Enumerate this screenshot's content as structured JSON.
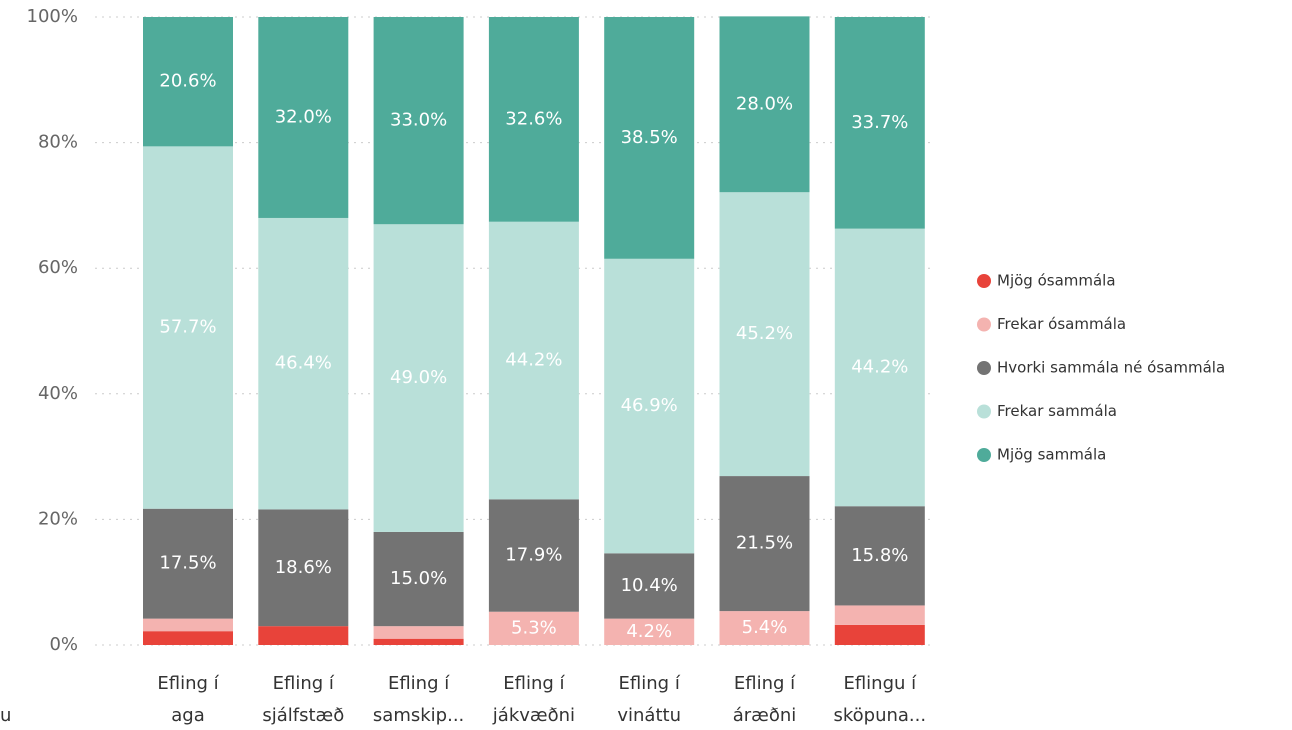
{
  "chart_data": {
    "type": "stacked_bar_100",
    "axis_title": "u",
    "categories": [
      [
        "Efling í",
        "aga"
      ],
      [
        "Efling í",
        "sjálfstæð"
      ],
      [
        "Efling í",
        "samskip..."
      ],
      [
        "Efling í",
        "jákvæðni"
      ],
      [
        "Efling í",
        "vináttu"
      ],
      [
        "Efling í",
        "áræðni"
      ],
      [
        "Eflingu í",
        "sköpuna..."
      ]
    ],
    "series": [
      {
        "name": "Mjög ósammála",
        "color": "#e8433a",
        "values": [
          2.2,
          3.0,
          1.0,
          0,
          0,
          0,
          3.2
        ],
        "value_labels": [
          null,
          null,
          null,
          null,
          null,
          null,
          null
        ]
      },
      {
        "name": "Frekar ósammála",
        "color": "#f4b3b0",
        "values": [
          2.0,
          0,
          2.0,
          5.3,
          4.2,
          5.4,
          3.1
        ],
        "value_labels": [
          null,
          null,
          null,
          "5.3%",
          "4.2%",
          "5.4%",
          null
        ]
      },
      {
        "name": "Hvorki sammála né ósammála",
        "color": "#737373",
        "values": [
          17.5,
          18.6,
          15.0,
          17.9,
          10.4,
          21.5,
          15.8
        ],
        "value_labels": [
          "17.5%",
          "18.6%",
          "15.0%",
          "17.9%",
          "10.4%",
          "21.5%",
          "15.8%"
        ]
      },
      {
        "name": "Frekar sammála",
        "color": "#b9e0d9",
        "values": [
          57.7,
          46.4,
          49.0,
          44.2,
          46.9,
          45.2,
          44.2
        ],
        "value_labels": [
          "57.7%",
          "46.4%",
          "49.0%",
          "44.2%",
          "46.9%",
          "45.2%",
          "44.2%"
        ]
      },
      {
        "name": "Mjög sammála",
        "color": "#4fab9a",
        "values": [
          20.6,
          32.0,
          33.0,
          32.6,
          38.5,
          28.0,
          33.7
        ],
        "value_labels": [
          "20.6%",
          "32.0%",
          "33.0%",
          "32.6%",
          "38.5%",
          "28.0%",
          "33.7%"
        ]
      }
    ],
    "ylim": [
      0,
      100
    ],
    "yticks": [
      {
        "value": 0,
        "label": "0%"
      },
      {
        "value": 20,
        "label": "20%"
      },
      {
        "value": 40,
        "label": "40%"
      },
      {
        "value": 60,
        "label": "60%"
      },
      {
        "value": 80,
        "label": "80%"
      },
      {
        "value": 100,
        "label": "100%"
      }
    ],
    "grid": true,
    "legend": "right"
  }
}
